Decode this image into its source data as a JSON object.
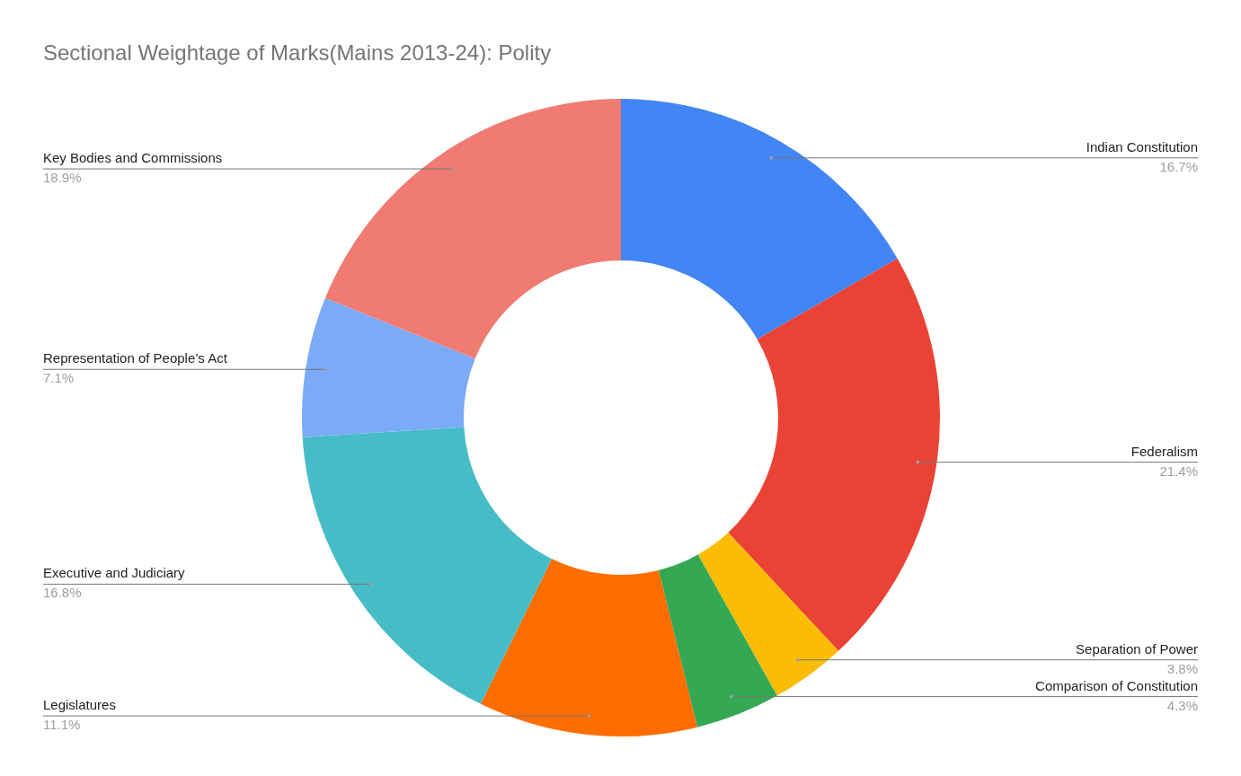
{
  "chart_data": {
    "type": "donut",
    "title": "Sectional Weightage of Marks(Mains 2013-24): Polity",
    "categories": [
      "Indian Constitution",
      "Federalism",
      "Separation of Power",
      "Comparison of Constitution",
      "Legislatures",
      "Executive and Judiciary",
      "Representation of People’s Act",
      "Key Bodies and Commissions"
    ],
    "values": [
      16.7,
      21.4,
      3.8,
      4.3,
      11.1,
      16.8,
      7.1,
      18.9
    ],
    "colors": [
      "#4285f4",
      "#ea4335",
      "#fbbc04",
      "#34a853",
      "#ff6d01",
      "#46bdc6",
      "#7baaf7",
      "#f07b72"
    ],
    "value_labels": [
      "16.7%",
      "21.4%",
      "3.8%",
      "4.3%",
      "11.1%",
      "16.8%",
      "7.1%",
      "18.9%"
    ],
    "legend": false
  }
}
